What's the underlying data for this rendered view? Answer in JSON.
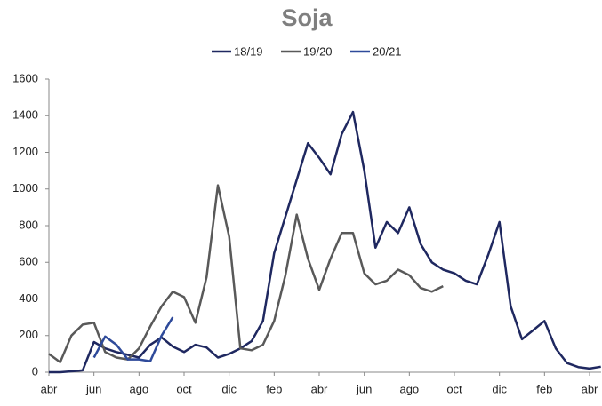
{
  "chart_data": {
    "type": "line",
    "title": "Soja",
    "categories": [
      "abr",
      null,
      null,
      null,
      "jun",
      null,
      null,
      null,
      "ago",
      null,
      null,
      null,
      "oct",
      null,
      null,
      null,
      "dic",
      null,
      null,
      null,
      "feb",
      null,
      null,
      null,
      "abr",
      null,
      null,
      null,
      "jun",
      null,
      null,
      null,
      "ago",
      null,
      null,
      null,
      "oct",
      null,
      null,
      null,
      "dic",
      null,
      null,
      null,
      "feb",
      null,
      null,
      null,
      "abr",
      null
    ],
    "series": [
      {
        "name": "18/19",
        "color": "#1f2860",
        "values": [
          0,
          0,
          5,
          10,
          165,
          130,
          110,
          95,
          80,
          150,
          190,
          140,
          110,
          150,
          135,
          80,
          100,
          130,
          170,
          280,
          650,
          850,
          1050,
          1250,
          1170,
          1080,
          1300,
          1420,
          1100,
          680,
          820,
          760,
          900,
          700,
          600,
          560,
          540,
          500,
          480,
          640,
          820,
          360,
          180,
          230,
          280,
          130,
          50,
          28,
          20,
          30
        ]
      },
      {
        "name": "19/20",
        "color": "#595959",
        "values": [
          100,
          55,
          200,
          260,
          270,
          110,
          80,
          70,
          130,
          250,
          360,
          440,
          410,
          270,
          520,
          1020,
          740,
          130,
          120,
          150,
          280,
          530,
          860,
          620,
          450,
          620,
          760,
          760,
          540,
          480,
          500,
          560,
          530,
          460,
          440,
          470,
          null,
          null,
          null,
          null,
          null,
          null,
          null,
          null,
          null,
          null,
          null,
          null,
          null,
          null
        ]
      },
      {
        "name": "20/21",
        "color": "#2e4a9a",
        "values": [
          null,
          null,
          null,
          null,
          80,
          195,
          150,
          70,
          70,
          60,
          200,
          300,
          null,
          null,
          null,
          null,
          null,
          null,
          null,
          null,
          null,
          null,
          null,
          null,
          null,
          null,
          null,
          null,
          null,
          null,
          null,
          null,
          null,
          null,
          null,
          null,
          null,
          null,
          null,
          null,
          null,
          null,
          null,
          null,
          null,
          null,
          null,
          null,
          null,
          null
        ]
      }
    ],
    "ylim": [
      0,
      1600
    ],
    "yticks": [
      0,
      200,
      400,
      600,
      800,
      1000,
      1200,
      1400,
      1600
    ],
    "grid": false,
    "legend": "top"
  }
}
